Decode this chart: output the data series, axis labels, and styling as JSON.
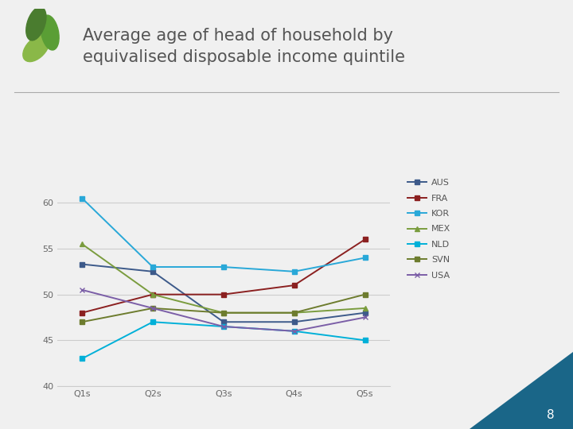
{
  "title_line1": "Average age of head of household by",
  "title_line2": "equivalised disposable income quintile",
  "x_labels": [
    "Q1s",
    "Q2s",
    "Q3s",
    "Q4s",
    "Q5s"
  ],
  "series": {
    "AUS": {
      "values": [
        53.3,
        52.5,
        47.0,
        47.0,
        48.0
      ],
      "color": "#3d5a8a",
      "marker": "s",
      "markersize": 4
    },
    "FRA": {
      "values": [
        48.0,
        50.0,
        50.0,
        51.0,
        56.0
      ],
      "color": "#8b2020",
      "marker": "s",
      "markersize": 4
    },
    "KOR": {
      "values": [
        60.5,
        53.0,
        53.0,
        52.5,
        54.0
      ],
      "color": "#29a8d8",
      "marker": "s",
      "markersize": 4
    },
    "MEX": {
      "values": [
        55.5,
        50.0,
        48.0,
        48.0,
        48.5
      ],
      "color": "#7a9c3e",
      "marker": "^",
      "markersize": 4
    },
    "NLD": {
      "values": [
        43.0,
        47.0,
        46.5,
        46.0,
        45.0
      ],
      "color": "#00b0d8",
      "marker": "s",
      "markersize": 4
    },
    "SVN": {
      "values": [
        47.0,
        48.5,
        48.0,
        48.0,
        50.0
      ],
      "color": "#6d7c2e",
      "marker": "s",
      "markersize": 4
    },
    "USA": {
      "values": [
        50.5,
        48.5,
        46.5,
        46.0,
        47.5
      ],
      "color": "#7b5ea7",
      "marker": "x",
      "markersize": 5
    }
  },
  "ylim": [
    40,
    62
  ],
  "yticks": [
    40,
    45,
    50,
    55,
    60
  ],
  "background_color": "#f0f0f0",
  "plot_bg": "#f0f0f0",
  "grid_color": "#cccccc",
  "title_fontsize": 15,
  "legend_fontsize": 8,
  "tick_fontsize": 8,
  "leaf_dark": "#4a7c2f",
  "leaf_mid": "#5a9e35",
  "leaf_light": "#8ab848",
  "teal_corner": "#1a6688"
}
